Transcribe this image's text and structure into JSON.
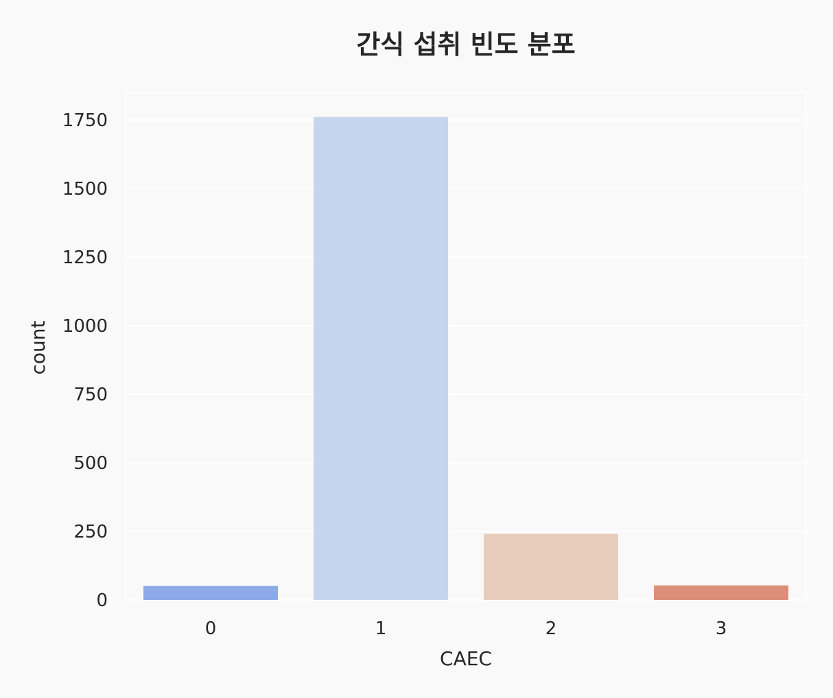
{
  "chart_data": {
    "type": "bar",
    "title": "간식 섭취 빈도 분포",
    "xlabel": "CAEC",
    "ylabel": "count",
    "categories": [
      "0",
      "1",
      "2",
      "3"
    ],
    "values": [
      51,
      1761,
      241,
      53
    ],
    "ylim": [
      0,
      1850
    ],
    "yticks": [
      0,
      250,
      500,
      750,
      1000,
      1250,
      1500,
      1750
    ],
    "grid": true,
    "legend": "none",
    "colors": [
      "#8caaea",
      "#c6d5ee",
      "#e8cdbd",
      "#dc8e79"
    ],
    "background": "#f9f9f9",
    "gridline_color": "#ffffff"
  }
}
